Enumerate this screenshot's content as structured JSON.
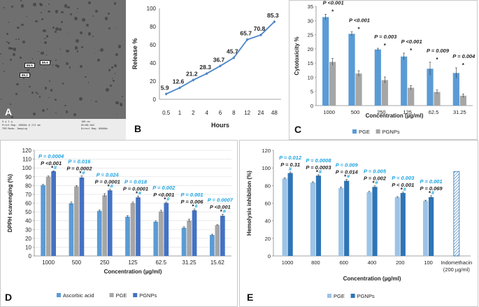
{
  "panel_letters": {
    "a": "A",
    "b": "B",
    "c": "C",
    "d": "D",
    "e": "E"
  },
  "panel_a": {
    "particle_labels": [
      "86.5",
      "85.6",
      "85.2"
    ],
    "meta_lines": [
      "5 µ 1 µ",
      "Print Mag: 10800x @ 211 mm",
      "TEM Mode: Imaging",
      "100 nm",
      "HV=80.0kV",
      "Direct Mag: 80000x"
    ]
  },
  "chart_data": [
    {
      "id": "B",
      "type": "line",
      "title": "",
      "xlabel": "Hours",
      "ylabel": "Release %",
      "categories": [
        "0.5",
        "1",
        "2",
        "4",
        "6",
        "8",
        "12",
        "24",
        "48"
      ],
      "values": [
        5.9,
        12.6,
        21.2,
        28.3,
        36.7,
        45.7,
        65.7,
        70.8,
        85.3
      ],
      "data_labels": [
        "5.9",
        "12.6",
        "21.2",
        "28.3",
        "36.7",
        "45.7",
        "65.7",
        "70.8",
        "85.3"
      ],
      "ylim": [
        0,
        100
      ],
      "yticks": [
        "0",
        "20",
        "40",
        "60",
        "80",
        "100"
      ],
      "color": "#4a86c8"
    },
    {
      "id": "C",
      "type": "bar",
      "xlabel": "Concentration (µg/ml)",
      "ylabel": "Cytotoxicity %",
      "categories": [
        "1000",
        "500",
        "250",
        "125",
        "62.5",
        "31.25"
      ],
      "series": [
        {
          "name": "PGE",
          "color": "#5b9bd5",
          "values": [
            31.2,
            25.3,
            19.8,
            17.3,
            13.0,
            11.5
          ],
          "errors": [
            1.0,
            0.7,
            0.4,
            1.2,
            2.3,
            1.8
          ]
        },
        {
          "name": "PGNPs",
          "color": "#a6a6a6",
          "values": [
            15.4,
            11.3,
            9.0,
            6.3,
            4.8,
            3.5
          ],
          "errors": [
            1.2,
            1.0,
            1.1,
            0.8,
            0.7,
            0.6
          ]
        }
      ],
      "p_values": [
        "P <0.001",
        "P <0.001",
        "P = 0.003",
        "P <0.001",
        "P = 0.009",
        "P = 0.004"
      ],
      "markers": [
        "*",
        "*",
        "*",
        "*",
        "*",
        "*"
      ],
      "ylim": [
        0,
        35
      ],
      "yticks": [
        "0",
        "5",
        "10",
        "15",
        "20",
        "25",
        "30",
        "35"
      ]
    },
    {
      "id": "D",
      "type": "bar",
      "xlabel": "Concentration (µg/ml)",
      "ylabel": "DPPH scavenging (%)",
      "categories": [
        "1000",
        "500",
        "250",
        "125",
        "62.5",
        "31.25",
        "15.62"
      ],
      "series": [
        {
          "name": "Ascorbic acid",
          "color": "#5b9bd5",
          "values": [
            80.5,
            59.8,
            51.2,
            44.6,
            38.9,
            32.0,
            23.9
          ],
          "errors": [
            0.8,
            1.5,
            1.2,
            1.2,
            1.0,
            1.3,
            0.8
          ]
        },
        {
          "name": "PGE",
          "color": "#a6a6a6",
          "values": [
            90.1,
            79.0,
            69.0,
            60.0,
            50.6,
            40.3,
            35.1
          ],
          "errors": [
            0.8,
            1.0,
            1.8,
            1.3,
            1.3,
            1.7,
            0.6
          ]
        },
        {
          "name": "PGNPs",
          "color": "#4472c4",
          "values": [
            96.2,
            89.2,
            74.6,
            66.6,
            60.2,
            51.9,
            45.7
          ],
          "errors": [
            0.6,
            1.7,
            1.1,
            1.5,
            1.0,
            1.4,
            1.7
          ]
        }
      ],
      "p_values_blue": [
        "P = 0.0004",
        "P = 0.016",
        "P = 0.024",
        "P = 0.018",
        "P = 0.002",
        "P = 0.001",
        "P = 0.0007"
      ],
      "p_values_black": [
        "P <0.001",
        "P = 0.0002",
        "P = 0.0001",
        "P = 0.0001",
        "P <0.001",
        "P = 0.006",
        "P <0.001"
      ],
      "markers": [
        "*#",
        "*#",
        "*#",
        "*#",
        "*#",
        "*#",
        "*#"
      ],
      "ylim": [
        0,
        120
      ],
      "yticks": [
        "0",
        "10",
        "20",
        "30",
        "40",
        "50",
        "60",
        "70",
        "80",
        "90",
        "100",
        "110",
        "120"
      ]
    },
    {
      "id": "E",
      "type": "bar",
      "xlabel": "Concentration (µg/ml)",
      "ylabel": "Hemolysis inhibition (%)",
      "categories": [
        "1000",
        "800",
        "600",
        "400",
        "200",
        "100"
      ],
      "extra_category": [
        "Indomethacin",
        "(200 µg/ml)"
      ],
      "extra_value": 96.0,
      "series": [
        {
          "name": "PGE",
          "color": "#9dc3e6",
          "values": [
            88.0,
            83.5,
            77.2,
            72.5,
            66.7,
            62.6
          ],
          "errors": [
            1.0,
            0.8,
            1.2,
            1.0,
            0.8,
            0.8
          ]
        },
        {
          "name": "PGNPs",
          "color": "#2e75b6",
          "values": [
            94.2,
            91.3,
            85.4,
            78.5,
            71.6,
            66.8
          ],
          "errors": [
            1.2,
            1.0,
            1.5,
            1.2,
            0.9,
            1.6
          ]
        }
      ],
      "p_values_blue": [
        "P = 0.012",
        "P = 0.0008",
        "P = 0.009",
        "P = 0.005",
        "P = 0.003",
        "P = 0.001"
      ],
      "p_values_black": [
        "P = 0.31",
        "P = 0.0003",
        "P = 0.014",
        "P = 0.002",
        "P < 0.001",
        "P = 0.069"
      ],
      "markers": [
        "#",
        "*#",
        "*#",
        "*#",
        "*#",
        "*#"
      ],
      "ylim": [
        0,
        120
      ],
      "yticks": [
        "0",
        "20",
        "40",
        "60",
        "80",
        "100",
        "120"
      ]
    }
  ]
}
